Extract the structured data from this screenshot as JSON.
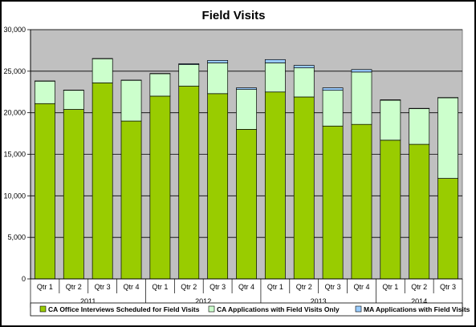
{
  "chart_data": {
    "type": "bar",
    "stacked": true,
    "title": "Field Visits",
    "xlabel": "",
    "ylabel": "",
    "ylim": [
      0,
      30000
    ],
    "yticks": [
      0,
      5000,
      10000,
      15000,
      20000,
      25000,
      30000
    ],
    "ytick_labels": [
      "0",
      "5,000",
      "10,000",
      "15,000",
      "20,000",
      "25,000",
      "30,000"
    ],
    "categories": [
      "Qtr 1",
      "Qtr 2",
      "Qtr 3",
      "Qtr 4",
      "Qtr 1",
      "Qtr 2",
      "Qtr 3",
      "Qtr 4",
      "Qtr 1",
      "Qtr 2",
      "Qtr 3",
      "Qtr 4",
      "Qtr 1",
      "Qtr 2",
      "Qtr 3"
    ],
    "groups": [
      {
        "label": "2011",
        "count": 4
      },
      {
        "label": "2012",
        "count": 4
      },
      {
        "label": "2013",
        "count": 4
      },
      {
        "label": "2014",
        "count": 3
      }
    ],
    "series": [
      {
        "name": "CA Office Interviews Scheduled for Field Visits",
        "color": "#99cc00",
        "values": [
          21100,
          20400,
          23600,
          19000,
          22000,
          23200,
          22300,
          18000,
          22500,
          21900,
          18400,
          18600,
          16700,
          16200,
          12100
        ]
      },
      {
        "name": "CA Applications with Field Visits Only",
        "color": "#ccffcc",
        "values": [
          2700,
          2300,
          2900,
          4900,
          2700,
          2600,
          3700,
          4800,
          3500,
          3500,
          4300,
          6300,
          4800,
          4300,
          9700
        ]
      },
      {
        "name": "MA Applications with Field Visits",
        "color": "#99ccff",
        "values": [
          30,
          30,
          30,
          30,
          30,
          100,
          300,
          200,
          400,
          300,
          300,
          300,
          60,
          30,
          30
        ]
      }
    ],
    "grid": true,
    "plot_background": "#c0c0c0",
    "legend_position": "bottom"
  }
}
